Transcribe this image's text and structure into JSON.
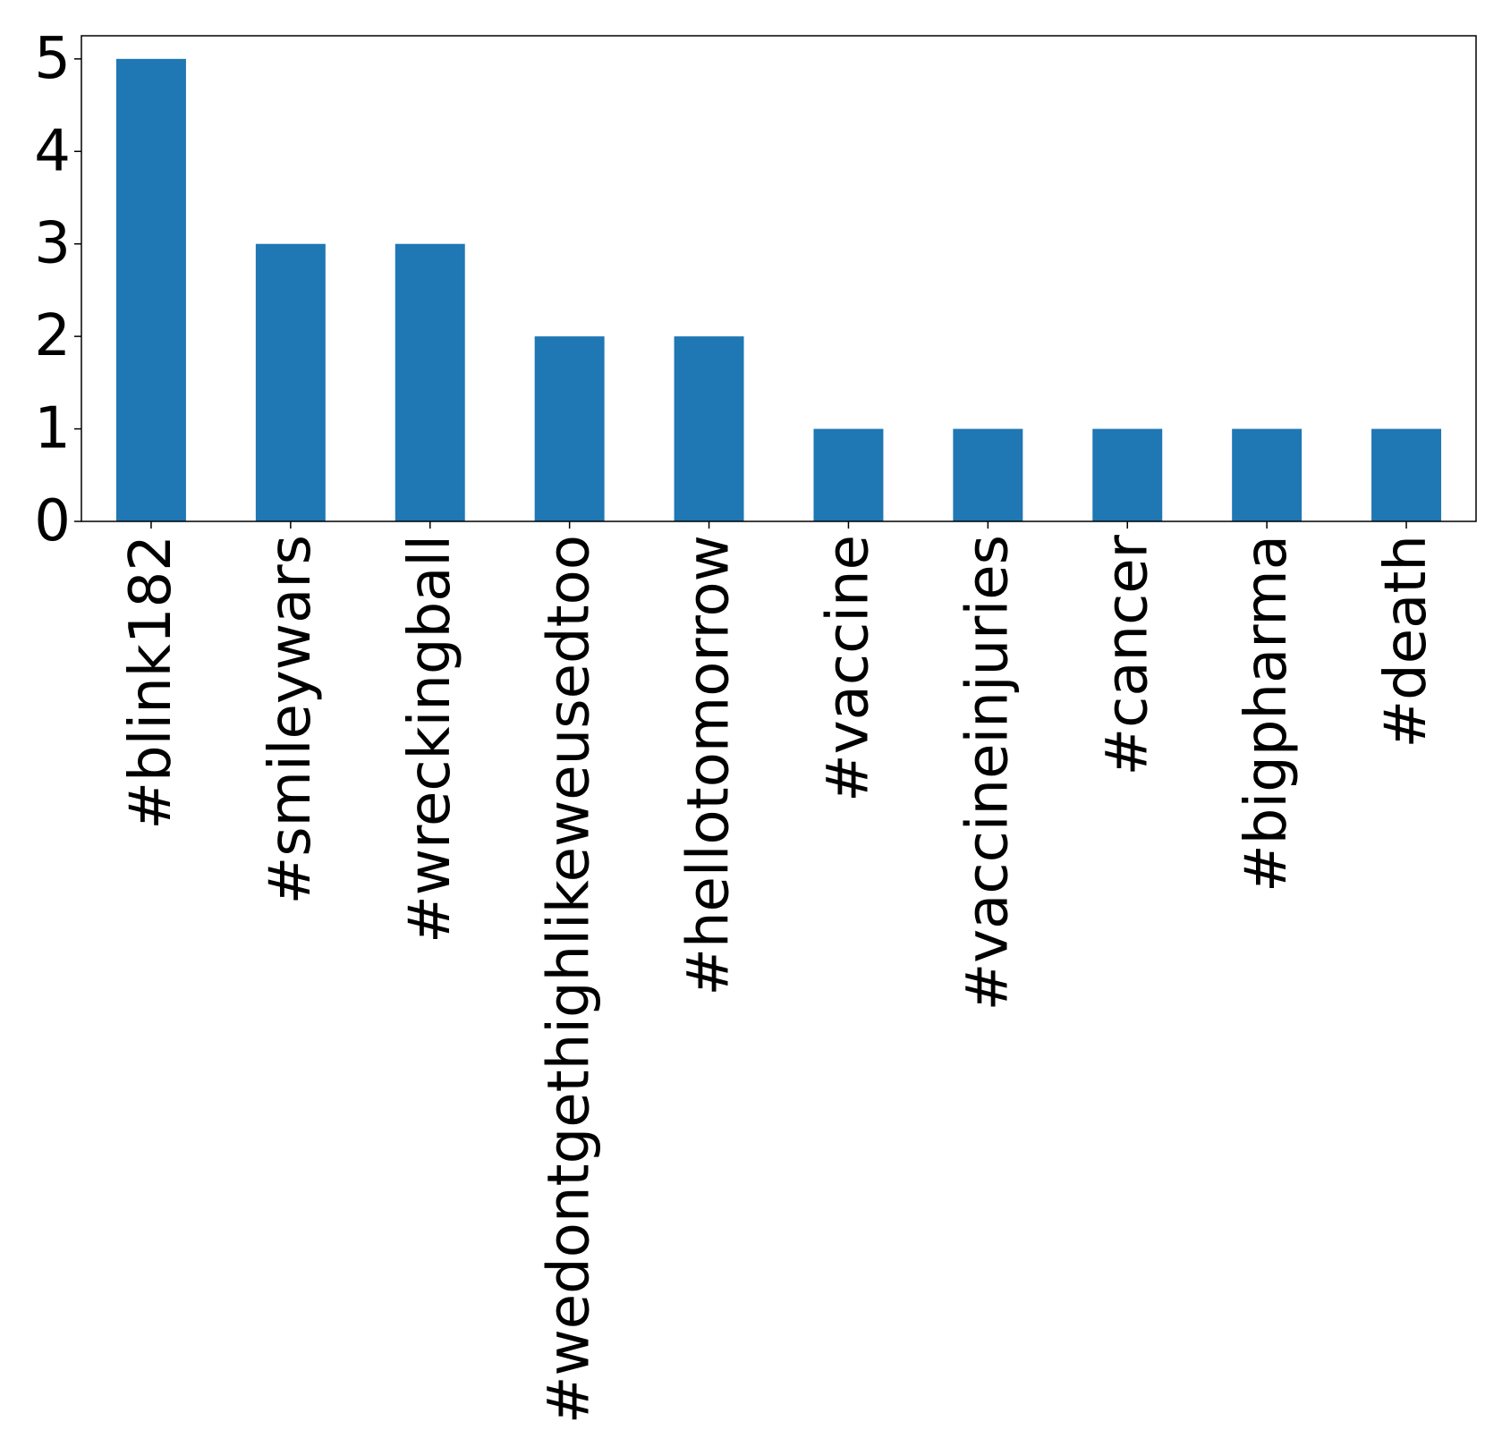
{
  "chart_data": {
    "type": "bar",
    "categories": [
      "#blink182",
      "#smileywars",
      "#wreckingball",
      "#wedontgethighlikeweusedtoo",
      "#hellotomorrow",
      "#vaccine",
      "#vaccineinjuries",
      "#cancer",
      "#bigpharma",
      "#death"
    ],
    "values": [
      5,
      3,
      3,
      2,
      2,
      1,
      1,
      1,
      1,
      1
    ],
    "title": "",
    "xlabel": "",
    "ylabel": "",
    "ylim": [
      0,
      5.25
    ],
    "yticks": [
      0,
      1,
      2,
      3,
      4,
      5
    ],
    "grid": false,
    "bar_color": "#1f77b4"
  }
}
